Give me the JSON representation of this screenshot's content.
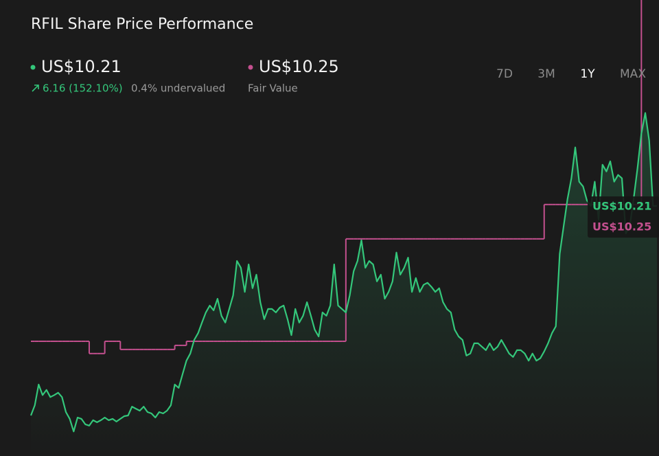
{
  "chart_data": {
    "type": "line",
    "title": "RFIL Share Price Performance",
    "price_label": "US$10.21",
    "change": "6.16 (152.10%)",
    "valuation": "0.4% undervalued",
    "fair_value_label": "US$10.25",
    "ranges": [
      "7D",
      "3M",
      "1Y",
      "MAX"
    ],
    "active_range": 2,
    "ylim": [
      3,
      14
    ],
    "series": [
      {
        "color": "#34c77b",
        "values": [
          4.05,
          4.35,
          4.96,
          4.65,
          4.8,
          4.59,
          4.65,
          4.72,
          4.59,
          4.15,
          3.95,
          3.58,
          3.99,
          3.95,
          3.79,
          3.75,
          3.91,
          3.85,
          3.91,
          3.99,
          3.91,
          3.95,
          3.87,
          3.95,
          4.03,
          4.05,
          4.31,
          4.25,
          4.19,
          4.31,
          4.15,
          4.11,
          3.99,
          4.15,
          4.11,
          4.19,
          4.35,
          4.96,
          4.86,
          5.26,
          5.66,
          5.87,
          6.27,
          6.47,
          6.78,
          7.08,
          7.28,
          7.14,
          7.48,
          6.98,
          6.78,
          7.18,
          7.58,
          8.59,
          8.39,
          7.68,
          8.49,
          7.79,
          8.19,
          7.38,
          6.88,
          7.18,
          7.18,
          7.08,
          7.22,
          7.28,
          6.88,
          6.41,
          7.18,
          6.78,
          6.98,
          7.38,
          6.98,
          6.57,
          6.37,
          7.08,
          6.98,
          7.28,
          8.49,
          7.28,
          7.18,
          7.08,
          7.58,
          8.29,
          8.59,
          9.2,
          8.39,
          8.59,
          8.49,
          7.99,
          8.19,
          7.48,
          7.68,
          7.99,
          8.84,
          8.19,
          8.39,
          8.69,
          7.68,
          8.09,
          7.68,
          7.89,
          7.95,
          7.83,
          7.68,
          7.79,
          7.38,
          7.18,
          7.08,
          6.57,
          6.37,
          6.27,
          5.81,
          5.87,
          6.17,
          6.17,
          6.07,
          5.97,
          6.17,
          5.97,
          6.07,
          6.27,
          6.07,
          5.87,
          5.77,
          5.97,
          5.97,
          5.87,
          5.66,
          5.87,
          5.66,
          5.73,
          5.93,
          6.17,
          6.47,
          6.67,
          8.8,
          9.6,
          10.41,
          11.02,
          11.93,
          10.92,
          10.78,
          10.37,
          10.21,
          10.92,
          9.81,
          11.42,
          11.22,
          11.52,
          10.92,
          11.12,
          11.02,
          9.4,
          9.6,
          10.41,
          11.32,
          12.33,
          12.94,
          12.13,
          10.21,
          10.21
        ]
      },
      {
        "name": "Fair Value",
        "color": "#c4508f",
        "values": [
          6.23,
          6.23,
          6.23,
          6.23,
          6.23,
          6.23,
          6.23,
          6.23,
          6.23,
          6.23,
          6.23,
          6.23,
          6.23,
          6.23,
          6.23,
          5.87,
          5.87,
          5.87,
          5.87,
          6.23,
          6.23,
          6.23,
          6.23,
          5.99,
          5.99,
          5.99,
          5.99,
          5.99,
          5.99,
          5.99,
          5.99,
          5.99,
          5.99,
          5.99,
          5.99,
          5.99,
          5.99,
          6.11,
          6.11,
          6.11,
          6.23,
          6.23,
          6.23,
          6.23,
          6.23,
          6.23,
          6.23,
          6.23,
          6.23,
          6.23,
          6.23,
          6.23,
          6.23,
          6.23,
          6.23,
          6.23,
          6.23,
          6.23,
          6.23,
          6.23,
          6.23,
          6.23,
          6.23,
          6.23,
          6.23,
          6.23,
          6.23,
          6.23,
          6.23,
          6.23,
          6.23,
          6.23,
          6.23,
          6.23,
          6.23,
          6.23,
          6.23,
          6.23,
          6.23,
          6.23,
          6.23,
          9.24,
          9.24,
          9.24,
          9.24,
          9.24,
          9.24,
          9.24,
          9.24,
          9.24,
          9.24,
          9.24,
          9.24,
          9.24,
          9.24,
          9.24,
          9.24,
          9.24,
          9.24,
          9.24,
          9.24,
          9.24,
          9.24,
          9.24,
          9.24,
          9.24,
          9.24,
          9.24,
          9.24,
          9.24,
          9.24,
          9.24,
          9.24,
          9.24,
          9.24,
          9.24,
          9.24,
          9.24,
          9.24,
          9.24,
          9.24,
          9.24,
          9.24,
          9.24,
          9.24,
          9.24,
          9.24,
          9.24,
          9.24,
          9.24,
          9.24,
          9.24,
          10.25,
          10.25,
          10.25,
          10.25,
          10.25,
          10.25,
          10.25,
          10.25,
          10.25,
          10.25,
          10.25,
          10.25,
          10.25,
          10.25,
          10.25,
          10.25,
          10.25,
          10.25,
          10.25,
          10.25,
          10.25,
          10.25,
          10.25,
          10.25,
          10.25
        ]
      }
    ]
  }
}
